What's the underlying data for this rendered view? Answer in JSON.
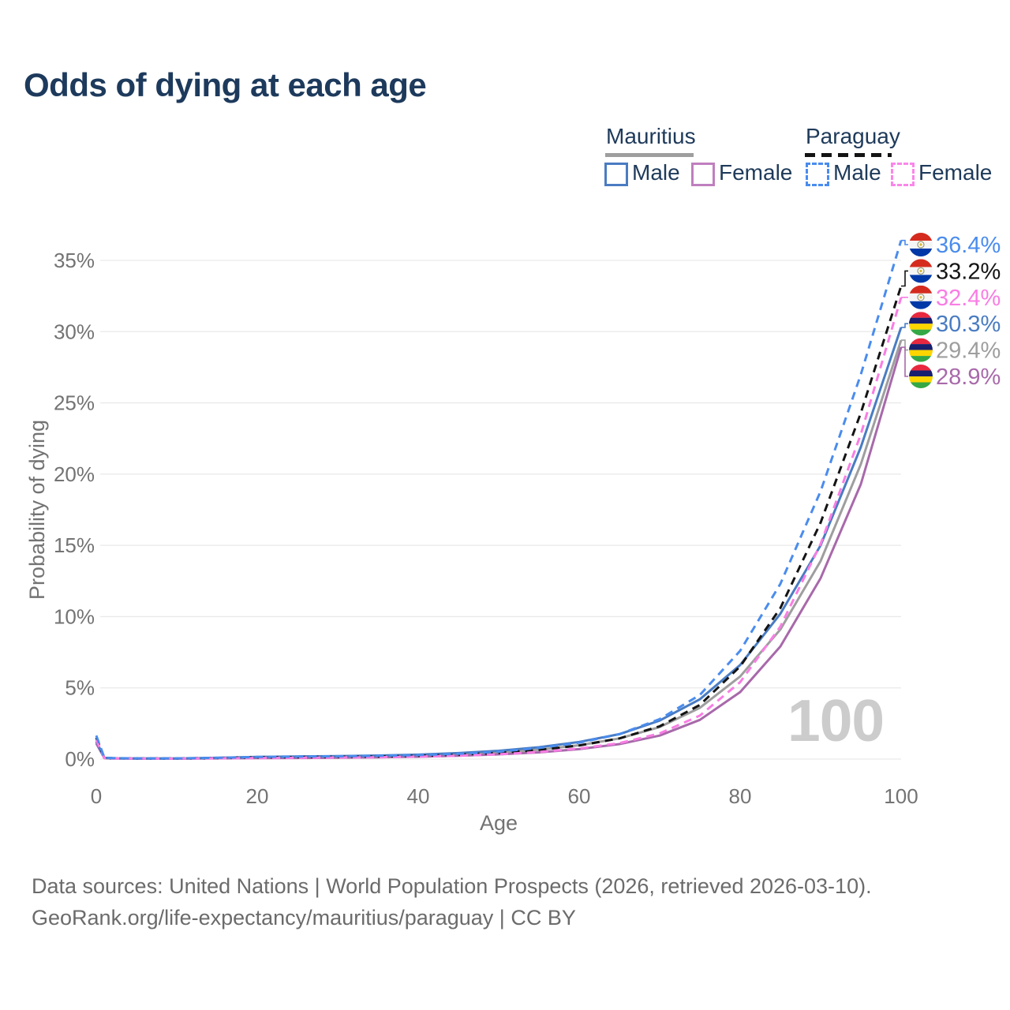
{
  "title": "Odds of dying at each age",
  "legend": {
    "mauritius": {
      "name": "Mauritius",
      "male_label": "Male",
      "female_label": "Female"
    },
    "paraguay": {
      "name": "Paraguay",
      "male_label": "Male",
      "female_label": "Female"
    }
  },
  "watermark": "100",
  "footer": {
    "line1": "Data sources: United Nations | World Population Prospects (2026, retrieved 2026-03-10).",
    "line2": "GeoRank.org/life-expectancy/mauritius/paraguay | CC BY"
  },
  "colors": {
    "title_text": "#1d3a5c",
    "legend_text": "#1e3a5a",
    "tick_text": "#737373",
    "gridline": "#e9e9e9",
    "watermark": "#cccccc",
    "footer_text": "#6b6b6b",
    "mauritius_male": "#4a7cc2",
    "mauritius_female": "#a869aa",
    "mauritius_total": "#9e9e9e",
    "paraguay_male": "#4a8cee",
    "paraguay_female": "#f97de4",
    "paraguay_total": "#141414"
  },
  "chart_data": {
    "type": "line",
    "title": "Odds of dying at each age",
    "xlabel": "Age",
    "ylabel": "Probability of dying",
    "x_ticks": [
      0,
      20,
      40,
      60,
      80,
      100
    ],
    "y_ticks_percent": [
      0,
      5,
      10,
      15,
      20,
      25,
      30,
      35
    ],
    "y_tick_labels": [
      "0%",
      "5%",
      "10%",
      "15%",
      "20%",
      "25%",
      "30%",
      "35%"
    ],
    "xlim": [
      0,
      100
    ],
    "ylim_percent": [
      0,
      36.6
    ],
    "grid": true,
    "legend_position": "top-right",
    "ages": [
      0,
      1,
      2,
      5,
      10,
      15,
      20,
      25,
      30,
      35,
      40,
      45,
      50,
      55,
      60,
      65,
      70,
      75,
      80,
      85,
      90,
      95,
      100
    ],
    "series": [
      {
        "id": "mauritius-total",
        "name": "Mauritius (both sexes)",
        "color": "#9e9e9e",
        "dash": false,
        "values": [
          1.18,
          0.08,
          0.05,
          0.04,
          0.04,
          0.07,
          0.11,
          0.13,
          0.155,
          0.185,
          0.24,
          0.33,
          0.46,
          0.66,
          0.97,
          1.45,
          2.25,
          3.6,
          5.8,
          9.1,
          13.9,
          20.7,
          29.4
        ]
      },
      {
        "id": "mauritius-female",
        "name": "Mauritius Female",
        "color": "#a869aa",
        "dash": false,
        "values": [
          1.1,
          0.07,
          0.045,
          0.035,
          0.03,
          0.05,
          0.065,
          0.08,
          0.1,
          0.125,
          0.165,
          0.23,
          0.33,
          0.47,
          0.7,
          1.05,
          1.65,
          2.75,
          4.7,
          7.9,
          12.7,
          19.3,
          28.9
        ]
      },
      {
        "id": "mauritius-male",
        "name": "Mauritius Male",
        "color": "#4a7cc2",
        "dash": false,
        "values": [
          1.25,
          0.09,
          0.06,
          0.045,
          0.045,
          0.09,
          0.15,
          0.18,
          0.21,
          0.25,
          0.31,
          0.42,
          0.58,
          0.83,
          1.2,
          1.75,
          2.7,
          4.2,
          6.6,
          10.2,
          15.0,
          21.9,
          30.3
        ]
      },
      {
        "id": "paraguay-total",
        "name": "Paraguay (both sexes)",
        "color": "#141414",
        "dash": true,
        "values": [
          1.5,
          0.09,
          0.06,
          0.045,
          0.04,
          0.075,
          0.12,
          0.14,
          0.16,
          0.18,
          0.23,
          0.31,
          0.43,
          0.64,
          0.95,
          1.45,
          2.3,
          3.8,
          6.5,
          10.6,
          16.6,
          24.3,
          33.2
        ]
      },
      {
        "id": "paraguay-female",
        "name": "Paraguay Female",
        "color": "#f97de4",
        "dash": true,
        "values": [
          1.35,
          0.08,
          0.05,
          0.04,
          0.035,
          0.055,
          0.07,
          0.09,
          0.11,
          0.13,
          0.17,
          0.24,
          0.34,
          0.5,
          0.74,
          1.12,
          1.8,
          3.05,
          5.4,
          9.3,
          15.1,
          22.8,
          32.4
        ]
      },
      {
        "id": "paraguay-male",
        "name": "Paraguay Male",
        "color": "#4a8cee",
        "dash": true,
        "values": [
          1.65,
          0.1,
          0.07,
          0.05,
          0.05,
          0.09,
          0.15,
          0.18,
          0.2,
          0.23,
          0.28,
          0.37,
          0.52,
          0.78,
          1.15,
          1.75,
          2.8,
          4.5,
          7.6,
          12.3,
          18.8,
          27.0,
          36.4
        ]
      }
    ],
    "end_labels": [
      {
        "text": "36.4%",
        "series": "paraguay-male",
        "flag": "paraguay"
      },
      {
        "text": "33.2%",
        "series": "paraguay-total",
        "flag": "paraguay"
      },
      {
        "text": "32.4%",
        "series": "paraguay-female",
        "flag": "paraguay"
      },
      {
        "text": "30.3%",
        "series": "mauritius-male",
        "flag": "mauritius"
      },
      {
        "text": "29.4%",
        "series": "mauritius-total",
        "flag": "mauritius"
      },
      {
        "text": "28.9%",
        "series": "mauritius-female",
        "flag": "mauritius"
      }
    ],
    "flag_colors": {
      "mauritius": [
        "#e8283f",
        "#171f6e",
        "#ffd500",
        "#35a845"
      ],
      "paraguay": [
        "#d52b1e",
        "#f5f5f5",
        "#0038a8"
      ]
    }
  }
}
